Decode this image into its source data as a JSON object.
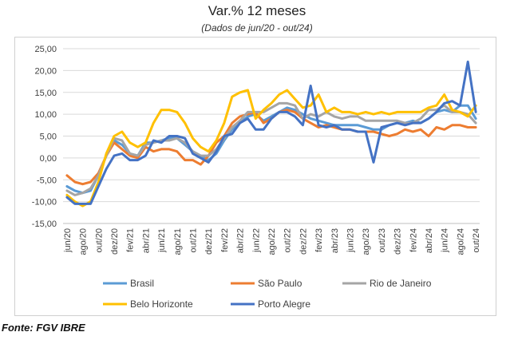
{
  "header": {
    "title": "Var.% 12 meses",
    "subtitle": "(Dados de jun/20 - out/24)"
  },
  "source": "Fonte: FGV IBRE",
  "colors": {
    "Brasil": "#5b9bd5",
    "São Paulo": "#ed7d31",
    "Rio de Janeiro": "#a5a5a5",
    "Belo Horizonte": "#ffc000",
    "Porto Alegre": "#4472c4",
    "grid": "#d9d9d9",
    "axis": "#bfbfbf"
  },
  "chart_data": {
    "type": "line",
    "title": "Var.% 12 meses",
    "subtitle": "(Dados de jun/20 - out/24)",
    "ylim": [
      -15,
      25
    ],
    "yticks": [
      -15,
      -10,
      -5,
      0,
      5,
      10,
      15,
      20,
      25
    ],
    "ytick_labels": [
      "-15,00",
      "-10,00",
      "-5,00",
      "0,00",
      "5,00",
      "10,00",
      "15,00",
      "20,00",
      "25,00"
    ],
    "grid": true,
    "legend_position": "bottom",
    "categories": [
      "jun/20",
      "jul/20",
      "ago/20",
      "set/20",
      "out/20",
      "nov/20",
      "dez/20",
      "jan/21",
      "fev/21",
      "mar/21",
      "abr/21",
      "mai/21",
      "jun/21",
      "jul/21",
      "ago/21",
      "set/21",
      "out/21",
      "nov/21",
      "dez/21",
      "jan/22",
      "fev/22",
      "mar/22",
      "abr/22",
      "mai/22",
      "jun/22",
      "jul/22",
      "ago/22",
      "set/22",
      "out/22",
      "nov/22",
      "dez/22",
      "jan/23",
      "fev/23",
      "mar/23",
      "abr/23",
      "mai/23",
      "jun/23",
      "jul/23",
      "ago/23",
      "set/23",
      "out/23",
      "nov/23",
      "dez/23",
      "jan/24",
      "fev/24",
      "mar/24",
      "abr/24",
      "mai/24",
      "jun/24",
      "jul/24",
      "ago/24",
      "set/24",
      "out/24"
    ],
    "tick_labels": [
      "jun/20",
      "",
      "ago/20",
      "",
      "out/20",
      "",
      "dez/20",
      "",
      "fev/21",
      "",
      "abr/21",
      "",
      "jun/21",
      "",
      "ago/21",
      "",
      "out/21",
      "",
      "dez/21",
      "",
      "fev/22",
      "",
      "abr/22",
      "",
      "jun/22",
      "",
      "ago/22",
      "",
      "out/22",
      "",
      "dez/22",
      "",
      "fev/23",
      "",
      "abr/23",
      "",
      "jun/23",
      "",
      "ago/23",
      "",
      "out/23",
      "",
      "dez/23",
      "",
      "fev/24",
      "",
      "abr/24",
      "",
      "jun/24",
      "",
      "ago/24",
      "",
      "out/24"
    ],
    "series": [
      {
        "name": "Brasil",
        "values": [
          -6.5,
          -7.5,
          -8.0,
          -7.5,
          -4.0,
          0.5,
          4.0,
          3.0,
          1.0,
          0.5,
          3.5,
          3.5,
          4.0,
          4.5,
          4.5,
          3.0,
          1.5,
          0.5,
          -0.5,
          1.0,
          4.0,
          6.5,
          8.0,
          9.5,
          10.0,
          8.5,
          9.5,
          10.5,
          11.5,
          11.0,
          10.0,
          9.0,
          8.5,
          8.0,
          7.5,
          7.5,
          7.5,
          7.5,
          7.0,
          6.5,
          6.5,
          7.5,
          8.0,
          8.0,
          8.5,
          8.0,
          9.0,
          10.5,
          11.0,
          10.5,
          12.0,
          12.0,
          9.0
        ]
      },
      {
        "name": "São Paulo",
        "values": [
          -4.0,
          -5.5,
          -6.0,
          -5.5,
          -3.5,
          0.5,
          3.5,
          2.0,
          0.5,
          0.0,
          2.5,
          1.5,
          2.0,
          2.0,
          1.5,
          -0.5,
          -0.5,
          -1.5,
          0.5,
          3.5,
          5.0,
          8.0,
          9.5,
          10.0,
          10.5,
          8.0,
          9.0,
          10.5,
          11.0,
          10.5,
          9.0,
          8.0,
          7.0,
          7.5,
          7.0,
          6.5,
          6.5,
          6.0,
          6.0,
          6.0,
          5.5,
          5.0,
          5.5,
          6.5,
          6.0,
          6.5,
          5.0,
          7.0,
          6.5,
          7.5,
          7.5,
          7.0,
          7.0
        ]
      },
      {
        "name": "Rio de Janeiro",
        "values": [
          -7.5,
          -8.5,
          -8.0,
          -7.0,
          -4.0,
          0.5,
          4.5,
          4.0,
          1.0,
          0.5,
          3.0,
          3.5,
          4.0,
          4.0,
          4.5,
          3.5,
          1.5,
          0.5,
          0.5,
          2.0,
          4.5,
          7.0,
          8.5,
          10.5,
          10.5,
          10.5,
          11.5,
          12.5,
          12.5,
          12.0,
          9.0,
          10.0,
          9.5,
          10.5,
          9.5,
          9.0,
          9.5,
          9.5,
          8.5,
          8.5,
          8.5,
          8.5,
          8.5,
          8.0,
          8.0,
          9.0,
          11.0,
          11.0,
          12.0,
          10.5,
          10.5,
          10.0,
          8.0
        ]
      },
      {
        "name": "Belo Horizonte",
        "values": [
          -8.5,
          -10.0,
          -11.0,
          -10.0,
          -5.5,
          1.0,
          5.0,
          6.0,
          3.5,
          2.5,
          3.5,
          8.0,
          11.0,
          11.0,
          10.5,
          8.0,
          4.5,
          2.5,
          1.5,
          4.0,
          8.0,
          14.0,
          15.0,
          15.5,
          9.0,
          11.0,
          12.5,
          14.5,
          15.5,
          13.5,
          11.5,
          12.0,
          14.5,
          10.5,
          11.5,
          10.5,
          10.5,
          10.0,
          10.5,
          10.0,
          10.5,
          10.0,
          10.5,
          10.5,
          10.5,
          10.5,
          11.5,
          12.0,
          14.5,
          11.0,
          10.5,
          9.5,
          12.0
        ]
      },
      {
        "name": "Porto Alegre",
        "values": [
          -9.0,
          -10.5,
          -10.5,
          -10.5,
          -6.5,
          -2.5,
          0.5,
          1.0,
          -0.5,
          -0.5,
          0.5,
          4.0,
          3.5,
          5.0,
          5.0,
          4.5,
          1.0,
          0.0,
          -1.0,
          1.5,
          5.0,
          5.5,
          8.0,
          9.0,
          6.5,
          6.5,
          9.0,
          10.5,
          10.5,
          9.5,
          7.5,
          16.5,
          7.5,
          7.0,
          7.5,
          6.5,
          6.5,
          6.0,
          6.0,
          -1.0,
          7.0,
          7.5,
          8.0,
          7.5,
          8.0,
          8.0,
          9.0,
          10.5,
          12.5,
          13.0,
          12.0,
          22.0,
          10.5
        ]
      }
    ]
  }
}
